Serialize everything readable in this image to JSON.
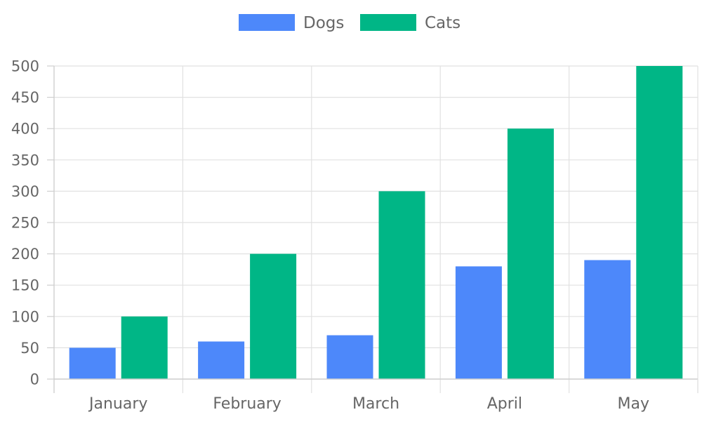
{
  "chart_data": {
    "type": "bar",
    "categories": [
      "January",
      "February",
      "March",
      "April",
      "May"
    ],
    "series": [
      {
        "name": "Dogs",
        "values": [
          50,
          60,
          70,
          180,
          190
        ],
        "color": "#4d88fa"
      },
      {
        "name": "Cats",
        "values": [
          100,
          200,
          300,
          400,
          500
        ],
        "color": "#00b686"
      }
    ],
    "title": "",
    "xlabel": "",
    "ylabel": "",
    "ylim": [
      0,
      500
    ],
    "yticks": [
      0,
      50,
      100,
      150,
      200,
      250,
      300,
      350,
      400,
      450,
      500
    ],
    "grid": true,
    "legend_position": "top-center"
  }
}
